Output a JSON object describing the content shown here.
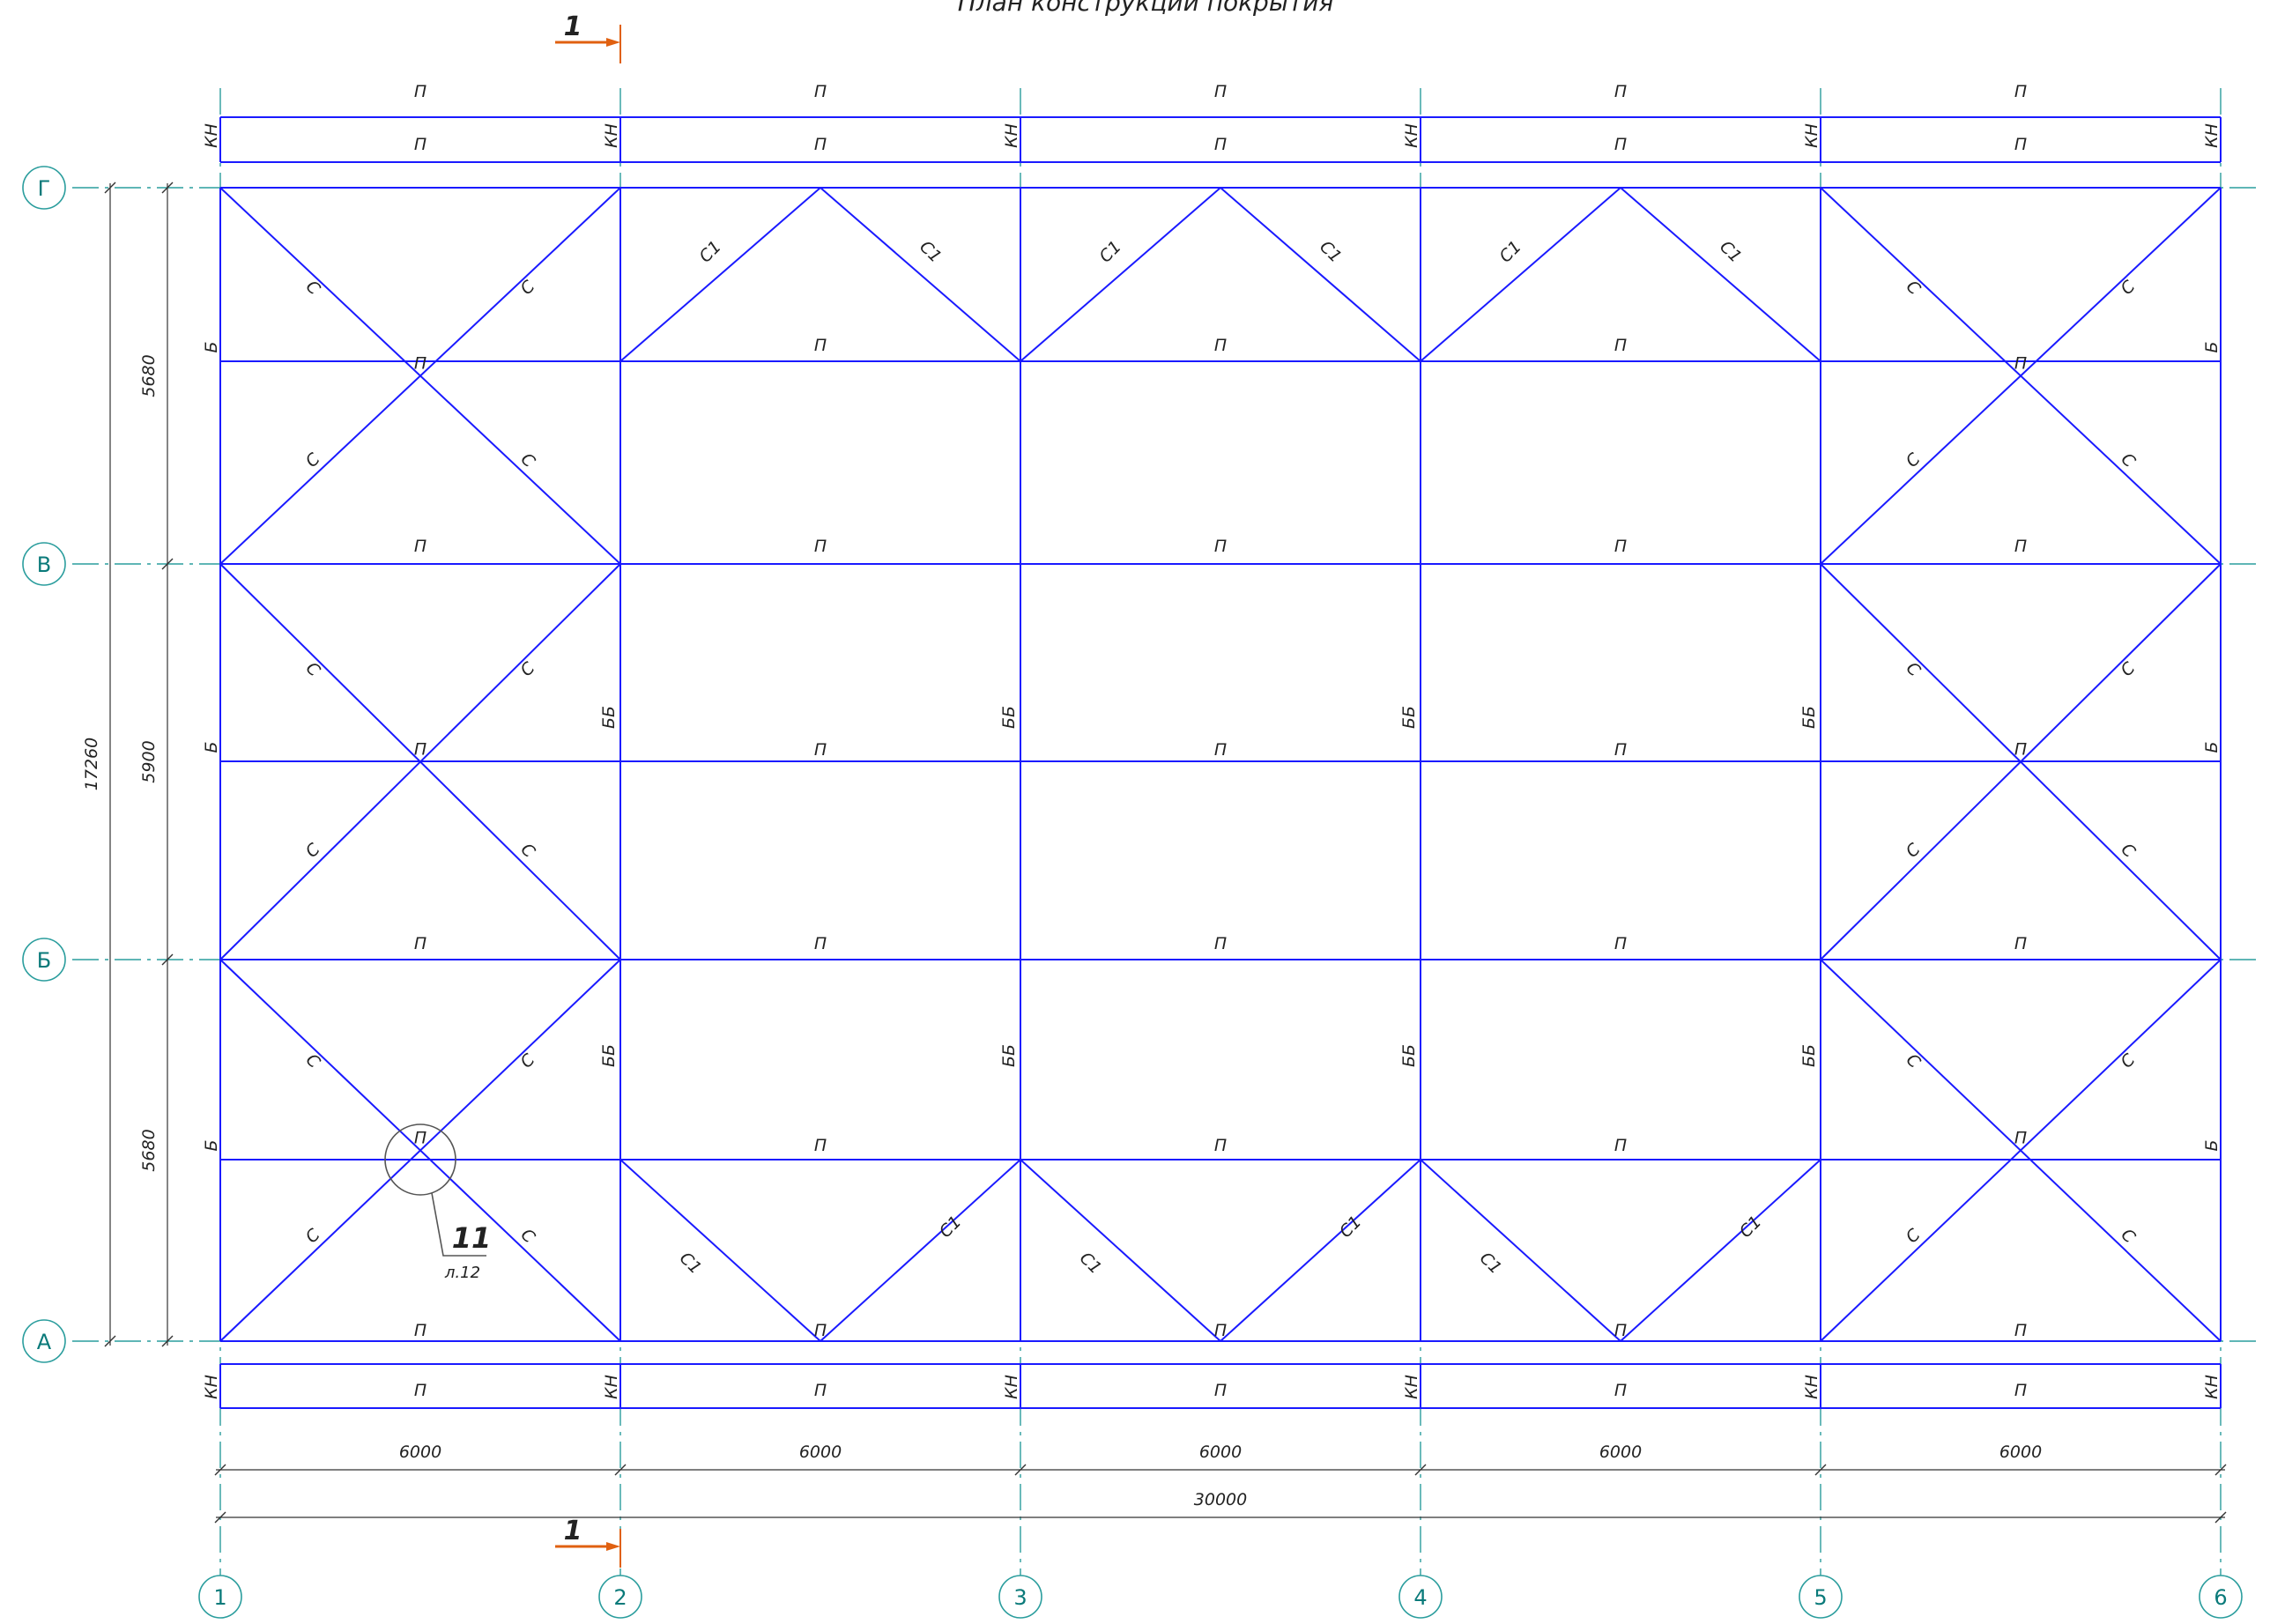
{
  "title": "План конструкций покрытия",
  "section_mark": {
    "label": "1"
  },
  "axes_x": [
    "1",
    "2",
    "3",
    "4",
    "5",
    "6"
  ],
  "axes_y": [
    "А",
    "Б",
    "В",
    "Г"
  ],
  "spans_x": [
    "6000",
    "6000",
    "6000",
    "6000",
    "6000"
  ],
  "total_x": "30000",
  "spans_y": [
    "5680",
    "5900",
    "5680"
  ],
  "total_y": "17260",
  "members": {
    "purlin": "П",
    "beam": "Б",
    "brace_beam": "ББ",
    "brace": "С",
    "brace_1": "С1",
    "cantilever": "КН"
  },
  "callout": {
    "number": "11",
    "sheet": "л.12"
  },
  "colors": {
    "structure": "#1a1aff",
    "axis": "#2a9d9d",
    "dimension": "#333333",
    "section": "#e06010"
  }
}
